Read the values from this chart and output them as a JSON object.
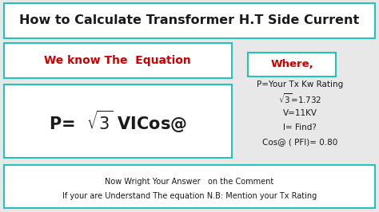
{
  "title": "How to Calculate Transformer H.T Side Current",
  "title_color": "#1a1a1a",
  "title_fontsize": 11.5,
  "title_fontweight": "bold",
  "bg_color": "#e8e8e8",
  "border_color": "#2abfbf",
  "subtitle_text": "We know The  Equation",
  "subtitle_color": "#cc0000",
  "subtitle_fontsize": 10,
  "equation_fontsize": 15,
  "equation_color": "#1a1a1a",
  "where_text": "Where,",
  "where_color": "#cc0000",
  "where_fontsize": 9.5,
  "info_lines": [
    "P=Your Tx Kw Rating",
    "$\\sqrt{3}$=1.732",
    "V=11KV",
    "I= Find?",
    "Cos@ ( PFI)= 0.80"
  ],
  "info_fontsize": 7.5,
  "info_color": "#1a1a1a",
  "footer_line1": "Now Wright Your Answer   on the Comment",
  "footer_line2": "If your are Understand The equation N.B: Mention your Tx Rating",
  "footer_fontsize": 7,
  "footer_color": "#1a1a1a",
  "lw": 1.5
}
